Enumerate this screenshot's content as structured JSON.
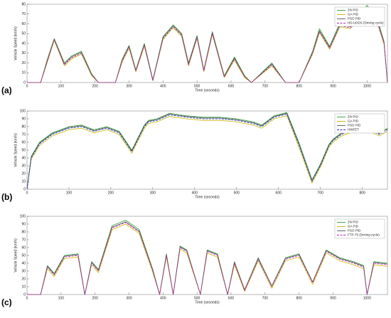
{
  "chart_data": [
    {
      "type": "line",
      "panel_label": "(a)",
      "xlabel": "Time (seconds)",
      "ylabel": "Vehicle Speed (km/h)",
      "xlim": [
        0,
        1060
      ],
      "ylim": [
        0,
        80
      ],
      "xticks": [
        0,
        100,
        200,
        300,
        400,
        500,
        600,
        700,
        800,
        900,
        1000
      ],
      "yticks": [
        0,
        10,
        20,
        30,
        40,
        50,
        60,
        70,
        80
      ],
      "grid": false,
      "legend": "upper right",
      "x": [
        0,
        40,
        60,
        80,
        110,
        130,
        160,
        190,
        210,
        260,
        280,
        300,
        320,
        345,
        370,
        400,
        430,
        455,
        475,
        500,
        520,
        545,
        580,
        610,
        640,
        660,
        720,
        760,
        800,
        840,
        860,
        890,
        920,
        950,
        980,
        1000,
        1030,
        1050,
        1060
      ],
      "series": [
        {
          "name": "ZN PID",
          "color": "#2e9e3a",
          "values": [
            0,
            0,
            24,
            45,
            20,
            27,
            32,
            9,
            0,
            0,
            24,
            38,
            13,
            40,
            3,
            47,
            59,
            50,
            20,
            48,
            13,
            52,
            7,
            26,
            7,
            0,
            20,
            0,
            0,
            32,
            55,
            37,
            61,
            59,
            69,
            79,
            65,
            42,
            0
          ]
        },
        {
          "name": "GA PID",
          "color": "#c8b400",
          "values": [
            0,
            0,
            21,
            43,
            17,
            24,
            29,
            7,
            0,
            0,
            21,
            35,
            11,
            37,
            2,
            44,
            56,
            47,
            17,
            45,
            11,
            49,
            5,
            23,
            5,
            0,
            17,
            0,
            0,
            29,
            51,
            34,
            57,
            55,
            65,
            75,
            61,
            39,
            0
          ]
        },
        {
          "name": "PSO PID",
          "color": "#555555",
          "values": [
            0,
            0,
            23,
            44,
            19,
            26,
            31,
            8,
            0,
            0,
            23,
            37,
            12,
            39,
            2,
            46,
            58,
            49,
            19,
            47,
            12,
            51,
            6,
            25,
            6,
            0,
            19,
            0,
            0,
            31,
            53,
            36,
            59,
            57,
            67,
            77,
            63,
            41,
            0
          ]
        },
        {
          "name": "HD-UDDS (Driving cycle)",
          "color": "#c020c0",
          "dashed": true,
          "values": [
            0,
            0,
            22,
            44,
            18,
            25,
            30,
            8,
            0,
            0,
            22,
            36,
            12,
            38,
            2,
            45,
            57,
            48,
            18,
            46,
            12,
            50,
            6,
            24,
            6,
            0,
            18,
            0,
            0,
            30,
            52,
            35,
            58,
            56,
            66,
            76,
            62,
            40,
            0
          ]
        }
      ]
    },
    {
      "type": "line",
      "panel_label": "(b)",
      "xlabel": "Time (seconds)",
      "ylabel": "Vehicle Speed (km/h)",
      "xlim": [
        0,
        860
      ],
      "ylim": [
        0,
        100
      ],
      "xticks": [
        0,
        100,
        200,
        300,
        400,
        500,
        600,
        700,
        800
      ],
      "yticks": [
        0,
        10,
        20,
        30,
        40,
        50,
        60,
        70,
        80,
        90,
        100
      ],
      "grid": false,
      "legend": "upper right",
      "x": [
        0,
        10,
        30,
        60,
        100,
        130,
        160,
        190,
        220,
        250,
        280,
        290,
        310,
        340,
        380,
        420,
        460,
        500,
        540,
        560,
        590,
        620,
        650,
        680,
        700,
        720,
        730,
        750,
        780,
        810,
        840,
        860
      ],
      "series": [
        {
          "name": "ZN PID",
          "color": "#2e9e3a",
          "values": [
            0,
            42,
            60,
            72,
            80,
            82,
            76,
            80,
            74,
            50,
            82,
            88,
            90,
            97,
            94,
            92,
            92,
            90,
            86,
            82,
            94,
            98,
            58,
            12,
            32,
            57,
            64,
            72,
            78,
            80,
            72,
            78
          ]
        },
        {
          "name": "GA PID",
          "color": "#c8b400",
          "values": [
            0,
            38,
            56,
            68,
            76,
            78,
            72,
            76,
            70,
            46,
            78,
            84,
            86,
            93,
            90,
            88,
            88,
            86,
            82,
            78,
            90,
            94,
            52,
            8,
            28,
            53,
            60,
            68,
            74,
            76,
            68,
            74
          ]
        },
        {
          "name": "PSO PID",
          "color": "#555555",
          "values": [
            0,
            41,
            59,
            71,
            79,
            81,
            75,
            79,
            73,
            49,
            81,
            87,
            89,
            96,
            93,
            91,
            91,
            89,
            85,
            81,
            93,
            97,
            56,
            11,
            31,
            56,
            63,
            71,
            77,
            79,
            71,
            77
          ]
        },
        {
          "name": "HWFET",
          "color": "#2030c0",
          "dashed": true,
          "values": [
            0,
            40,
            58,
            70,
            78,
            80,
            74,
            78,
            72,
            48,
            80,
            86,
            88,
            95,
            92,
            90,
            90,
            88,
            84,
            80,
            92,
            96,
            55,
            10,
            30,
            55,
            62,
            70,
            76,
            78,
            70,
            76
          ]
        }
      ]
    },
    {
      "type": "line",
      "panel_label": "(c)",
      "xlabel": "Time (seconds)",
      "ylabel": "Vehicle Speed (km/h)",
      "xlim": [
        0,
        1060
      ],
      "ylim": [
        0,
        100
      ],
      "xticks": [
        0,
        100,
        200,
        300,
        400,
        500,
        600,
        700,
        800,
        900,
        1000
      ],
      "yticks": [
        0,
        10,
        20,
        30,
        40,
        50,
        60,
        70,
        80,
        90,
        100
      ],
      "grid": false,
      "legend": "upper right",
      "x": [
        0,
        40,
        60,
        80,
        110,
        150,
        170,
        190,
        210,
        250,
        290,
        330,
        370,
        390,
        410,
        430,
        450,
        470,
        510,
        530,
        560,
        590,
        610,
        640,
        680,
        720,
        760,
        800,
        840,
        880,
        920,
        960,
        990,
        1000,
        1020,
        1060
      ],
      "series": [
        {
          "name": "ZN PID",
          "color": "#2e9e3a",
          "values": [
            0,
            0,
            37,
            27,
            50,
            52,
            0,
            42,
            32,
            88,
            95,
            83,
            32,
            0,
            52,
            0,
            62,
            57,
            0,
            57,
            52,
            0,
            42,
            6,
            47,
            11,
            47,
            52,
            16,
            57,
            47,
            42,
            37,
            0,
            42,
            40
          ]
        },
        {
          "name": "GA PID",
          "color": "#c8b400",
          "values": [
            0,
            0,
            33,
            23,
            46,
            48,
            0,
            38,
            28,
            83,
            90,
            78,
            28,
            0,
            48,
            0,
            58,
            53,
            0,
            53,
            48,
            0,
            38,
            4,
            43,
            8,
            43,
            48,
            13,
            53,
            43,
            38,
            33,
            0,
            38,
            36
          ]
        },
        {
          "name": "PSO PID",
          "color": "#555555",
          "values": [
            0,
            0,
            36,
            26,
            49,
            51,
            0,
            41,
            31,
            86,
            93,
            81,
            31,
            0,
            51,
            0,
            61,
            56,
            0,
            56,
            51,
            0,
            41,
            6,
            46,
            11,
            46,
            51,
            16,
            56,
            46,
            41,
            36,
            0,
            41,
            39
          ]
        },
        {
          "name": "FTP-75 (Driving cycle)",
          "color": "#c020c0",
          "dashed": true,
          "values": [
            0,
            0,
            35,
            25,
            48,
            50,
            0,
            40,
            30,
            85,
            92,
            80,
            30,
            0,
            50,
            0,
            60,
            55,
            0,
            55,
            50,
            0,
            40,
            5,
            45,
            10,
            45,
            50,
            15,
            55,
            45,
            40,
            35,
            0,
            40,
            38
          ]
        }
      ]
    }
  ]
}
